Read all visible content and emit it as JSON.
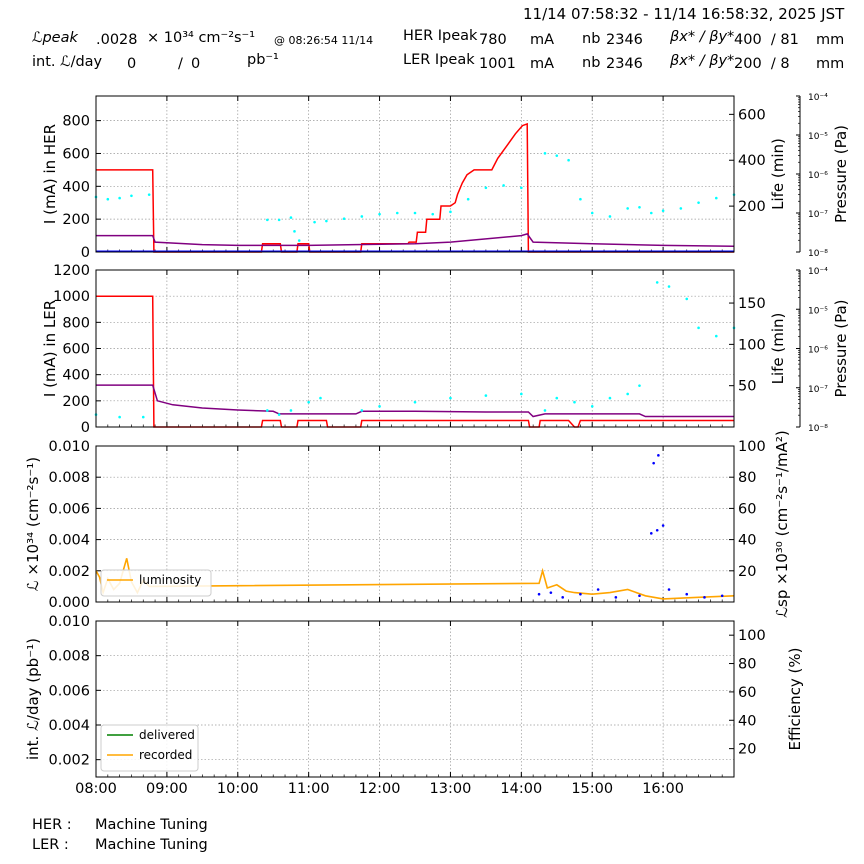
{
  "header": {
    "time_range": "11/14 07:58:32 - 11/14 16:58:32, 2025 JST",
    "lpeak_label": "ℒpeak",
    "lpeak_value": ".0028",
    "lpeak_unit": "× 10³⁴ cm⁻²s⁻¹",
    "lpeak_time": "@ 08:26:54 11/14",
    "intl_label": "int. ℒ/day",
    "intl_value1": "0",
    "intl_sep": "/",
    "intl_value2": "0",
    "intl_unit": "pb⁻¹",
    "her_label": "HER Ipeak",
    "her_value": "780",
    "her_unit": "mA",
    "her_nb_label": "nb",
    "her_nb_value": "2346",
    "her_beta_label": "βx* / βy*",
    "her_beta_value": "400  / 81",
    "her_beta_unit": "mm",
    "ler_label": "LER Ipeak",
    "ler_value": "1001",
    "ler_unit": "mA",
    "ler_nb_label": "nb",
    "ler_nb_value": "2346",
    "ler_beta_label": "βx* / βy*",
    "ler_beta_value": "200  / 8",
    "ler_beta_unit": "mm"
  },
  "footer": {
    "her_label": "HER :",
    "her_status": "Machine Tuning",
    "ler_label": "LER :",
    "ler_status": "Machine Tuning"
  },
  "chart_data": [
    {
      "type": "line",
      "panel": "HER",
      "xlabel": "",
      "xlim": [
        "08:00",
        "17:00"
      ],
      "ylabel": "I (mA) in HER",
      "ylim": [
        0,
        950
      ],
      "yticks": [
        "0",
        "200",
        "400",
        "600",
        "800"
      ],
      "y2label": "Life (min)",
      "y2lim": [
        0,
        680
      ],
      "y2ticks": [
        "200",
        "400",
        "600"
      ],
      "y3label": "Pressure (Pa)",
      "y3ticks": [
        "10⁻⁸",
        "10⁻⁷",
        "10⁻⁶",
        "10⁻⁵",
        "10⁻⁴"
      ],
      "grid": true,
      "series": [
        {
          "color": "#ff0000",
          "axis": "left",
          "points": [
            [
              "08:00",
              500
            ],
            [
              "08:48",
              500
            ],
            [
              "08:49",
              0
            ],
            [
              "10:20",
              0
            ],
            [
              "10:21",
              50
            ],
            [
              "10:36",
              50
            ],
            [
              "10:37",
              0
            ],
            [
              "10:50",
              0
            ],
            [
              "10:51",
              50
            ],
            [
              "11:00",
              50
            ],
            [
              "11:01",
              0
            ],
            [
              "11:44",
              0
            ],
            [
              "11:45",
              50
            ],
            [
              "12:24",
              50
            ],
            [
              "12:25",
              60
            ],
            [
              "12:31",
              60
            ],
            [
              "12:32",
              120
            ],
            [
              "12:39",
              120
            ],
            [
              "12:40",
              200
            ],
            [
              "12:51",
              200
            ],
            [
              "12:52",
              280
            ],
            [
              "13:00",
              280
            ],
            [
              "13:04",
              300
            ],
            [
              "13:06",
              350
            ],
            [
              "13:10",
              420
            ],
            [
              "13:14",
              470
            ],
            [
              "13:20",
              500
            ],
            [
              "13:35",
              500
            ],
            [
              "13:40",
              570
            ],
            [
              "13:48",
              650
            ],
            [
              "13:55",
              720
            ],
            [
              "14:01",
              770
            ],
            [
              "14:05",
              780
            ],
            [
              "14:06",
              0
            ],
            [
              "17:00",
              0
            ]
          ]
        },
        {
          "color": "#800080",
          "axis": "left",
          "points": [
            [
              "08:00",
              100
            ],
            [
              "08:48",
              100
            ],
            [
              "08:50",
              60
            ],
            [
              "09:30",
              45
            ],
            [
              "10:00",
              40
            ],
            [
              "10:30",
              40
            ],
            [
              "10:40",
              40
            ],
            [
              "11:00",
              40
            ],
            [
              "11:40",
              45
            ],
            [
              "12:30",
              50
            ],
            [
              "13:00",
              60
            ],
            [
              "13:30",
              80
            ],
            [
              "14:00",
              100
            ],
            [
              "14:05",
              110
            ],
            [
              "14:10",
              60
            ],
            [
              "15:00",
              50
            ],
            [
              "16:00",
              40
            ],
            [
              "17:00",
              35
            ]
          ]
        },
        {
          "color": "#0000ff",
          "axis": "left",
          "points": [
            [
              "08:00",
              5
            ],
            [
              "17:00",
              5
            ]
          ]
        },
        {
          "color": "#00ffff",
          "axis": "right",
          "style": "dots",
          "points": [
            [
              "08:00",
              240
            ],
            [
              "08:10",
              230
            ],
            [
              "08:20",
              235
            ],
            [
              "08:30",
              245
            ],
            [
              "08:45",
              250
            ],
            [
              "10:25",
              140
            ],
            [
              "10:35",
              140
            ],
            [
              "10:45",
              150
            ],
            [
              "10:48",
              90
            ],
            [
              "10:52",
              50
            ],
            [
              "11:05",
              130
            ],
            [
              "11:15",
              135
            ],
            [
              "11:30",
              145
            ],
            [
              "11:45",
              155
            ],
            [
              "12:00",
              165
            ],
            [
              "12:15",
              170
            ],
            [
              "12:30",
              170
            ],
            [
              "12:45",
              165
            ],
            [
              "13:00",
              175
            ],
            [
              "13:15",
              230
            ],
            [
              "13:30",
              280
            ],
            [
              "13:45",
              290
            ],
            [
              "14:00",
              280
            ],
            [
              "14:20",
              430
            ],
            [
              "14:30",
              420
            ],
            [
              "14:40",
              400
            ],
            [
              "14:50",
              230
            ],
            [
              "15:00",
              170
            ],
            [
              "15:15",
              155
            ],
            [
              "15:30",
              190
            ],
            [
              "15:40",
              195
            ],
            [
              "15:50",
              170
            ],
            [
              "16:00",
              180
            ],
            [
              "16:15",
              190
            ],
            [
              "16:30",
              215
            ],
            [
              "16:45",
              235
            ],
            [
              "17:00",
              250
            ]
          ]
        }
      ]
    },
    {
      "type": "line",
      "panel": "LER",
      "xlabel": "",
      "xlim": [
        "08:00",
        "17:00"
      ],
      "ylabel": "I (mA) in LER",
      "ylim": [
        0,
        1200
      ],
      "yticks": [
        "0",
        "200",
        "400",
        "600",
        "800",
        "1000",
        "1200"
      ],
      "y2label": "Life (min)",
      "y2lim": [
        0,
        190
      ],
      "y2ticks": [
        "50",
        "100",
        "150"
      ],
      "y3label": "Pressure (Pa)",
      "y3ticks": [
        "10⁻⁸",
        "10⁻⁷",
        "10⁻⁶",
        "10⁻⁵",
        "10⁻⁴"
      ],
      "grid": true,
      "series": [
        {
          "color": "#ff0000",
          "axis": "left",
          "points": [
            [
              "08:00",
              1000
            ],
            [
              "08:48",
              1000
            ],
            [
              "08:49",
              0
            ],
            [
              "10:20",
              0
            ],
            [
              "10:21",
              50
            ],
            [
              "10:36",
              50
            ],
            [
              "10:37",
              0
            ],
            [
              "10:50",
              0
            ],
            [
              "10:51",
              50
            ],
            [
              "11:15",
              50
            ],
            [
              "11:16",
              0
            ],
            [
              "11:44",
              0
            ],
            [
              "11:45",
              50
            ],
            [
              "14:06",
              50
            ],
            [
              "14:07",
              0
            ],
            [
              "14:15",
              0
            ],
            [
              "14:16",
              50
            ],
            [
              "14:40",
              50
            ],
            [
              "14:45",
              0
            ],
            [
              "14:48",
              0
            ],
            [
              "14:50",
              50
            ],
            [
              "16:55",
              50
            ],
            [
              "17:00",
              50
            ]
          ]
        },
        {
          "color": "#800080",
          "axis": "left",
          "points": [
            [
              "08:00",
              320
            ],
            [
              "08:48",
              320
            ],
            [
              "08:52",
              200
            ],
            [
              "09:05",
              170
            ],
            [
              "09:30",
              145
            ],
            [
              "10:00",
              130
            ],
            [
              "10:30",
              120
            ],
            [
              "10:35",
              100
            ],
            [
              "11:00",
              100
            ],
            [
              "11:40",
              100
            ],
            [
              "11:45",
              120
            ],
            [
              "12:30",
              120
            ],
            [
              "13:30",
              115
            ],
            [
              "14:06",
              115
            ],
            [
              "14:10",
              80
            ],
            [
              "14:20",
              100
            ],
            [
              "15:00",
              100
            ],
            [
              "15:40",
              100
            ],
            [
              "15:45",
              80
            ],
            [
              "16:50",
              80
            ],
            [
              "16:55",
              80
            ],
            [
              "17:00",
              80
            ]
          ]
        },
        {
          "color": "#00ffff",
          "axis": "right",
          "style": "dots",
          "points": [
            [
              "08:00",
              15
            ],
            [
              "08:20",
              12
            ],
            [
              "08:40",
              12
            ],
            [
              "10:25",
              20
            ],
            [
              "10:35",
              15
            ],
            [
              "10:45",
              20
            ],
            [
              "11:00",
              30
            ],
            [
              "11:10",
              35
            ],
            [
              "11:45",
              20
            ],
            [
              "12:00",
              25
            ],
            [
              "12:30",
              30
            ],
            [
              "13:00",
              35
            ],
            [
              "13:30",
              38
            ],
            [
              "14:00",
              40
            ],
            [
              "14:20",
              20
            ],
            [
              "14:30",
              35
            ],
            [
              "14:45",
              30
            ],
            [
              "15:00",
              25
            ],
            [
              "15:15",
              35
            ],
            [
              "15:30",
              40
            ],
            [
              "15:40",
              50
            ],
            [
              "15:55",
              175
            ],
            [
              "16:05",
              170
            ],
            [
              "16:20",
              155
            ],
            [
              "16:30",
              120
            ],
            [
              "16:45",
              110
            ],
            [
              "17:00",
              120
            ]
          ]
        }
      ]
    },
    {
      "type": "scatter",
      "panel": "Luminosity",
      "xlabel": "",
      "xlim": [
        "08:00",
        "17:00"
      ],
      "ylabel": "ℒ ×10³⁴ (cm⁻²s⁻¹)",
      "ylim": [
        0,
        0.01
      ],
      "yticks": [
        "0.000",
        "0.002",
        "0.004",
        "0.006",
        "0.008",
        "0.010"
      ],
      "y2label": "ℒsp ×10³⁰ (cm⁻²s⁻¹/mA²)",
      "y2lim": [
        0,
        100
      ],
      "y2ticks": [
        "20",
        "40",
        "60",
        "80",
        "100"
      ],
      "grid": true,
      "legend": "lower-left",
      "series": [
        {
          "name": "luminosity",
          "color": "#ffa500",
          "axis": "left",
          "points": [
            [
              "08:00",
              0.002
            ],
            [
              "08:03",
              0.0016
            ],
            [
              "08:06",
              0.0006
            ],
            [
              "08:10",
              0.0015
            ],
            [
              "08:15",
              0.0008
            ],
            [
              "08:20",
              0.0012
            ],
            [
              "08:26",
              0.0028
            ],
            [
              "08:30",
              0.0013
            ],
            [
              "08:35",
              0.0006
            ],
            [
              "08:40",
              0.0014
            ],
            [
              "08:45",
              0.001
            ],
            [
              "14:15",
              0.0012
            ],
            [
              "14:18",
              0.002
            ],
            [
              "14:22",
              0.0009
            ],
            [
              "14:30",
              0.0011
            ],
            [
              "14:38",
              0.0007
            ],
            [
              "14:45",
              0.0006
            ],
            [
              "15:00",
              0.0005
            ],
            [
              "15:15",
              0.0006
            ],
            [
              "15:30",
              0.0008
            ],
            [
              "15:45",
              0.0004
            ],
            [
              "16:00",
              0.0002
            ],
            [
              "16:30",
              0.0003
            ],
            [
              "17:00",
              0.0004
            ]
          ]
        },
        {
          "color": "#0000ff",
          "axis": "right",
          "style": "dots",
          "points": [
            [
              "14:15",
              5
            ],
            [
              "14:25",
              6
            ],
            [
              "14:35",
              3
            ],
            [
              "14:50",
              5
            ],
            [
              "15:05",
              8
            ],
            [
              "15:20",
              3
            ],
            [
              "15:40",
              4
            ],
            [
              "15:50",
              44
            ],
            [
              "15:55",
              46
            ],
            [
              "16:00",
              49
            ],
            [
              "15:52",
              89
            ],
            [
              "15:56",
              94
            ],
            [
              "16:05",
              8
            ],
            [
              "16:20",
              5
            ],
            [
              "16:35",
              3
            ],
            [
              "16:50",
              4
            ]
          ]
        }
      ]
    },
    {
      "type": "line",
      "panel": "Integrated luminosity",
      "xlabel": "",
      "xlim": [
        "08:00",
        "17:00"
      ],
      "xticks": [
        "08:00",
        "09:00",
        "10:00",
        "11:00",
        "12:00",
        "13:00",
        "14:00",
        "15:00",
        "16:00"
      ],
      "ylabel": "int. ℒ/day (pb⁻¹)",
      "ylim": [
        0.001,
        0.01
      ],
      "yticks": [
        "0.002",
        "0.004",
        "0.006",
        "0.008",
        "0.010"
      ],
      "y2label": "Efficiency (%)",
      "y2lim": [
        0,
        110
      ],
      "y2ticks": [
        "20",
        "40",
        "60",
        "80",
        "100"
      ],
      "grid": true,
      "legend": "lower-left",
      "series": [
        {
          "name": "delivered",
          "color": "#008000",
          "points": []
        },
        {
          "name": "recorded",
          "color": "#ffa500",
          "points": []
        }
      ]
    }
  ]
}
